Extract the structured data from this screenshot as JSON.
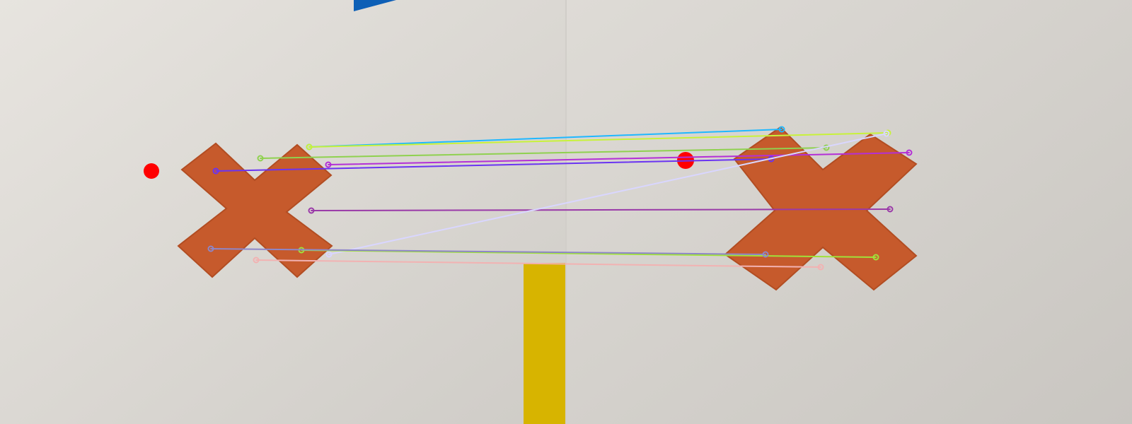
{
  "image": {
    "description_free": true,
    "panels": [
      "left",
      "right"
    ],
    "colors": {
      "paper_light": "#e6e3de",
      "paper_dark": "#c9c6c1",
      "cross": "#c65a2c",
      "cross_edge": "#b24d22",
      "blue_tape": "#0d5fb6",
      "yellow_tape": "#d7b400",
      "keypoint_dot": "#ff0000"
    },
    "matches": [
      {
        "id": "m1",
        "color": "#1fb8ff"
      },
      {
        "id": "m2",
        "color": "#c8f23a"
      },
      {
        "id": "m3",
        "color": "#8fd14f"
      },
      {
        "id": "m4",
        "color": "#b42fd6"
      },
      {
        "id": "m5",
        "color": "#6a34f2"
      },
      {
        "id": "m6",
        "color": "#9a3aa8"
      },
      {
        "id": "m7",
        "color": "#d9d6ff"
      },
      {
        "id": "m8",
        "color": "#a0e23a"
      },
      {
        "id": "m9",
        "color": "#8e86c8"
      },
      {
        "id": "m10",
        "color": "#f2b2b2"
      }
    ]
  }
}
